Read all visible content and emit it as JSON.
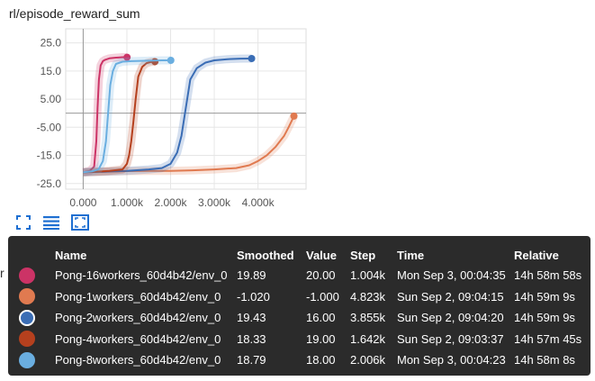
{
  "title": "rl/episode_reward_sum",
  "left_stub": "r",
  "toolbar": {
    "expand_icon": "fullscreen-icon",
    "data_icon": "list-icon",
    "fit_icon": "fit-domain-icon"
  },
  "tooltip": {
    "headers": [
      "Name",
      "Smoothed",
      "Value",
      "Step",
      "Time",
      "Relative"
    ],
    "rows": [
      {
        "color": "#cc3366",
        "name": "Pong-16workers_60d4b42/env_0",
        "smoothed": "19.89",
        "value": "20.00",
        "step": "1.004k",
        "time": "Mon Sep 3, 00:04:35",
        "relative": "14h 58m 58s",
        "selected": false
      },
      {
        "color": "#e07a50",
        "name": "Pong-1workers_60d4b42/env_0",
        "smoothed": "-1.020",
        "value": "-1.000",
        "step": "4.823k",
        "time": "Sun Sep 2, 09:04:15",
        "relative": "14h 59m 9s",
        "selected": false
      },
      {
        "color": "#3a6db5",
        "name": "Pong-2workers_60d4b42/env_0",
        "smoothed": "19.43",
        "value": "16.00",
        "step": "3.855k",
        "time": "Sun Sep 2, 09:04:20",
        "relative": "14h 59m 9s",
        "selected": true
      },
      {
        "color": "#b5401e",
        "name": "Pong-4workers_60d4b42/env_0",
        "smoothed": "18.33",
        "value": "19.00",
        "step": "1.642k",
        "time": "Sun Sep 2, 09:03:37",
        "relative": "14h 57m 45s",
        "selected": false
      },
      {
        "color": "#6aaee0",
        "name": "Pong-8workers_60d4b42/env_0",
        "smoothed": "18.79",
        "value": "18.00",
        "step": "2.006k",
        "time": "Mon Sep 3, 00:04:23",
        "relative": "14h 58m 8s",
        "selected": false
      }
    ]
  },
  "chart_data": {
    "type": "line",
    "title": "rl/episode_reward_sum",
    "xlabel": "",
    "ylabel": "",
    "xlim": [
      -400,
      5100
    ],
    "ylim": [
      -27,
      30
    ],
    "x_ticks": [
      0,
      1000,
      2000,
      3000,
      4000
    ],
    "x_tick_labels": [
      "0.000",
      "1.000k",
      "2.000k",
      "3.000k",
      "4.000k"
    ],
    "y_ticks": [
      25,
      15,
      5,
      -5,
      -15,
      -25
    ],
    "y_tick_labels": [
      "25.0",
      "15.0",
      "5.00",
      "-5.00",
      "-15.0",
      "-25.0"
    ],
    "grid": true,
    "series": [
      {
        "name": "Pong-16workers_60d4b42/env_0",
        "color": "#cc3366",
        "x": [
          0,
          150,
          250,
          300,
          330,
          360,
          400,
          450,
          500,
          600,
          700,
          800,
          900,
          1004
        ],
        "y": [
          -21,
          -20.5,
          -19,
          -10,
          2,
          12,
          17,
          18.5,
          19,
          19.5,
          19.7,
          19.8,
          19.9,
          19.89
        ]
      },
      {
        "name": "Pong-1workers_60d4b42/env_0",
        "color": "#e07a50",
        "x": [
          0,
          500,
          1000,
          1500,
          2000,
          2500,
          3000,
          3500,
          3800,
          4000,
          4200,
          4400,
          4600,
          4700,
          4823
        ],
        "y": [
          -21,
          -20.8,
          -20.6,
          -20.5,
          -20.5,
          -20.3,
          -20,
          -19.5,
          -18.5,
          -17,
          -15,
          -12,
          -8,
          -5,
          -1.02
        ]
      },
      {
        "name": "Pong-2workers_60d4b42/env_0",
        "color": "#3a6db5",
        "x": [
          0,
          500,
          1000,
          1500,
          1800,
          2000,
          2150,
          2250,
          2350,
          2450,
          2600,
          2800,
          3000,
          3300,
          3600,
          3855
        ],
        "y": [
          -21,
          -20.8,
          -20.5,
          -20,
          -19.5,
          -18,
          -14,
          -8,
          2,
          12,
          16,
          18,
          18.8,
          19.2,
          19.4,
          19.43
        ]
      },
      {
        "name": "Pong-4workers_60d4b42/env_0",
        "color": "#b5401e",
        "x": [
          0,
          300,
          600,
          900,
          1000,
          1050,
          1100,
          1150,
          1200,
          1260,
          1350,
          1450,
          1550,
          1642
        ],
        "y": [
          -21,
          -20.8,
          -20.5,
          -20,
          -18,
          -15,
          -10,
          -3,
          5,
          13,
          16.5,
          17.8,
          18.2,
          18.33
        ]
      },
      {
        "name": "Pong-8workers_60d4b42/env_0",
        "color": "#6aaee0",
        "x": [
          0,
          200,
          350,
          450,
          520,
          570,
          620,
          680,
          750,
          900,
          1100,
          1300,
          1600,
          1800,
          2006
        ],
        "y": [
          -21,
          -20.7,
          -20,
          -17,
          -10,
          0,
          10,
          15,
          17.5,
          18.3,
          18.5,
          18.6,
          18.7,
          18.8,
          18.79
        ]
      }
    ]
  }
}
